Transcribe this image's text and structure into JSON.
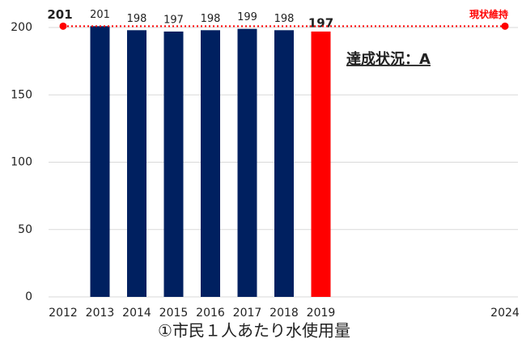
{
  "chart_data": {
    "type": "bar",
    "title": "①市民１人あたり水使用量",
    "categories": [
      "2012",
      "2013",
      "2014",
      "2015",
      "2016",
      "2017",
      "2018",
      "2019",
      null,
      null,
      null,
      null,
      "2024"
    ],
    "values": [
      null,
      201,
      198,
      197,
      198,
      199,
      198,
      197,
      null,
      null,
      null,
      null,
      null
    ],
    "colors": [
      null,
      "#002060",
      "#002060",
      "#002060",
      "#002060",
      "#002060",
      "#002060",
      "#ff0000",
      null,
      null,
      null,
      null,
      null
    ],
    "highlight": 7,
    "ylim": [
      0,
      200
    ],
    "yticks": [
      0,
      50,
      100,
      150,
      200
    ],
    "grid": true,
    "reference": {
      "label": "現状維持",
      "value": 201,
      "color": "#ff0000",
      "from": 0,
      "to": 12
    },
    "annotation": "達成状況：A"
  }
}
